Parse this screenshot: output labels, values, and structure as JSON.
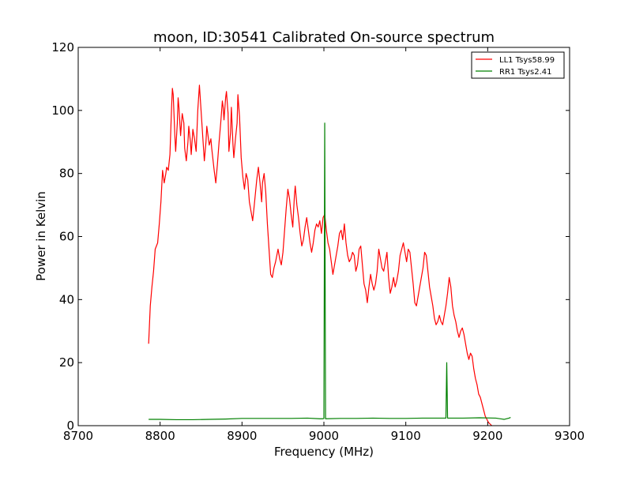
{
  "chart_data": {
    "type": "line",
    "title": "moon, ID:30541 Calibrated On-source spectrum",
    "xlabel": "Frequency (MHz)",
    "ylabel": "Power in Kelvin",
    "xlim": [
      8700,
      9300
    ],
    "ylim": [
      0,
      120
    ],
    "x_ticks": [
      8700,
      8800,
      8900,
      9000,
      9100,
      9200,
      9300
    ],
    "y_ticks": [
      0,
      20,
      40,
      60,
      80,
      100,
      120
    ],
    "grid": false,
    "legend_position": "top-right",
    "series": [
      {
        "name": "LL1 Tsys58.99",
        "color": "#ff0000",
        "points": [
          [
            8786,
            26
          ],
          [
            8788,
            38
          ],
          [
            8790,
            44
          ],
          [
            8792,
            49
          ],
          [
            8794,
            56
          ],
          [
            8797,
            58
          ],
          [
            8799,
            64
          ],
          [
            8801,
            71
          ],
          [
            8803,
            81
          ],
          [
            8805,
            77
          ],
          [
            8807,
            80
          ],
          [
            8808,
            82
          ],
          [
            8810,
            81
          ],
          [
            8812,
            86
          ],
          [
            8814,
            101
          ],
          [
            8815,
            107
          ],
          [
            8816,
            105
          ],
          [
            8818,
            92
          ],
          [
            8819,
            87
          ],
          [
            8821,
            96
          ],
          [
            8822,
            104
          ],
          [
            8823,
            101
          ],
          [
            8825,
            92
          ],
          [
            8827,
            99
          ],
          [
            8829,
            96
          ],
          [
            8830,
            88
          ],
          [
            8832,
            84
          ],
          [
            8834,
            90
          ],
          [
            8835,
            95
          ],
          [
            8837,
            90
          ],
          [
            8838,
            86
          ],
          [
            8840,
            94
          ],
          [
            8842,
            91
          ],
          [
            8844,
            87
          ],
          [
            8846,
            100
          ],
          [
            8848,
            108
          ],
          [
            8850,
            100
          ],
          [
            8852,
            92
          ],
          [
            8854,
            84
          ],
          [
            8856,
            90
          ],
          [
            8857,
            95
          ],
          [
            8859,
            91
          ],
          [
            8860,
            89
          ],
          [
            8862,
            91
          ],
          [
            8863,
            88
          ],
          [
            8866,
            81
          ],
          [
            8868,
            77
          ],
          [
            8870,
            83
          ],
          [
            8872,
            90
          ],
          [
            8874,
            96
          ],
          [
            8876,
            103
          ],
          [
            8877,
            101
          ],
          [
            8878,
            97
          ],
          [
            8880,
            104
          ],
          [
            8881,
            106
          ],
          [
            8883,
            99
          ],
          [
            8884,
            87
          ],
          [
            8886,
            93
          ],
          [
            8887,
            101
          ],
          [
            8889,
            89
          ],
          [
            8890,
            85
          ],
          [
            8892,
            91
          ],
          [
            8894,
            96
          ],
          [
            8895,
            105
          ],
          [
            8897,
            98
          ],
          [
            8899,
            85
          ],
          [
            8901,
            79
          ],
          [
            8903,
            75
          ],
          [
            8905,
            80
          ],
          [
            8907,
            78
          ],
          [
            8909,
            71
          ],
          [
            8911,
            68
          ],
          [
            8913,
            65
          ],
          [
            8915,
            70
          ],
          [
            8918,
            78
          ],
          [
            8920,
            82
          ],
          [
            8922,
            77
          ],
          [
            8924,
            71
          ],
          [
            8925,
            77
          ],
          [
            8927,
            80
          ],
          [
            8929,
            74
          ],
          [
            8931,
            64
          ],
          [
            8933,
            56
          ],
          [
            8935,
            48
          ],
          [
            8937,
            47
          ],
          [
            8939,
            50
          ],
          [
            8941,
            52
          ],
          [
            8944,
            56
          ],
          [
            8946,
            53
          ],
          [
            8948,
            51
          ],
          [
            8950,
            55
          ],
          [
            8952,
            62
          ],
          [
            8954,
            69
          ],
          [
            8956,
            75
          ],
          [
            8958,
            72
          ],
          [
            8960,
            67
          ],
          [
            8962,
            63
          ],
          [
            8964,
            73
          ],
          [
            8965,
            76
          ],
          [
            8967,
            70
          ],
          [
            8969,
            66
          ],
          [
            8971,
            61
          ],
          [
            8973,
            57
          ],
          [
            8975,
            59
          ],
          [
            8977,
            63
          ],
          [
            8979,
            66
          ],
          [
            8981,
            62
          ],
          [
            8983,
            58
          ],
          [
            8985,
            55
          ],
          [
            8987,
            58
          ],
          [
            8989,
            62
          ],
          [
            8991,
            64
          ],
          [
            8993,
            63
          ],
          [
            8995,
            65
          ],
          [
            8997,
            61
          ],
          [
            8999,
            66
          ],
          [
            9001,
            67
          ],
          [
            9003,
            62
          ],
          [
            9005,
            58
          ],
          [
            9007,
            56
          ],
          [
            9009,
            52
          ],
          [
            9011,
            48
          ],
          [
            9013,
            51
          ],
          [
            9015,
            54
          ],
          [
            9017,
            57
          ],
          [
            9019,
            61
          ],
          [
            9021,
            62
          ],
          [
            9023,
            59
          ],
          [
            9025,
            64
          ],
          [
            9027,
            58
          ],
          [
            9029,
            54
          ],
          [
            9031,
            52
          ],
          [
            9033,
            53
          ],
          [
            9035,
            55
          ],
          [
            9037,
            54
          ],
          [
            9039,
            49
          ],
          [
            9041,
            51
          ],
          [
            9043,
            56
          ],
          [
            9045,
            57
          ],
          [
            9047,
            51
          ],
          [
            9049,
            45
          ],
          [
            9051,
            43
          ],
          [
            9053,
            39
          ],
          [
            9055,
            44
          ],
          [
            9057,
            48
          ],
          [
            9059,
            45
          ],
          [
            9061,
            43
          ],
          [
            9063,
            45
          ],
          [
            9065,
            49
          ],
          [
            9067,
            56
          ],
          [
            9069,
            53
          ],
          [
            9071,
            50
          ],
          [
            9073,
            49
          ],
          [
            9075,
            52
          ],
          [
            9077,
            55
          ],
          [
            9079,
            47
          ],
          [
            9081,
            42
          ],
          [
            9083,
            44
          ],
          [
            9085,
            47
          ],
          [
            9087,
            44
          ],
          [
            9089,
            46
          ],
          [
            9091,
            49
          ],
          [
            9093,
            54
          ],
          [
            9095,
            56
          ],
          [
            9097,
            58
          ],
          [
            9099,
            55
          ],
          [
            9101,
            52
          ],
          [
            9103,
            56
          ],
          [
            9105,
            55
          ],
          [
            9107,
            50
          ],
          [
            9109,
            45
          ],
          [
            9111,
            39
          ],
          [
            9113,
            38
          ],
          [
            9115,
            41
          ],
          [
            9117,
            44
          ],
          [
            9119,
            47
          ],
          [
            9121,
            50
          ],
          [
            9123,
            55
          ],
          [
            9125,
            54
          ],
          [
            9127,
            49
          ],
          [
            9129,
            44
          ],
          [
            9131,
            41
          ],
          [
            9133,
            38
          ],
          [
            9135,
            34
          ],
          [
            9137,
            32
          ],
          [
            9139,
            33
          ],
          [
            9141,
            35
          ],
          [
            9143,
            33
          ],
          [
            9145,
            32
          ],
          [
            9147,
            35
          ],
          [
            9149,
            38
          ],
          [
            9151,
            42
          ],
          [
            9153,
            47
          ],
          [
            9155,
            44
          ],
          [
            9157,
            38
          ],
          [
            9159,
            35
          ],
          [
            9161,
            33
          ],
          [
            9163,
            30
          ],
          [
            9165,
            28
          ],
          [
            9167,
            30
          ],
          [
            9169,
            31
          ],
          [
            9171,
            29
          ],
          [
            9173,
            26
          ],
          [
            9175,
            23
          ],
          [
            9177,
            21
          ],
          [
            9179,
            23
          ],
          [
            9181,
            22
          ],
          [
            9183,
            18
          ],
          [
            9185,
            15
          ],
          [
            9187,
            13
          ],
          [
            9189,
            10
          ],
          [
            9191,
            9
          ],
          [
            9193,
            7
          ],
          [
            9195,
            5
          ],
          [
            9197,
            3
          ],
          [
            9199,
            2
          ],
          [
            9201,
            1
          ],
          [
            9203,
            0.5
          ],
          [
            9205,
            0
          ]
        ]
      },
      {
        "name": "RR1 Tsys2.41",
        "color": "#008000",
        "points": [
          [
            8786,
            2.0
          ],
          [
            8800,
            2.0
          ],
          [
            8820,
            1.9
          ],
          [
            8840,
            1.9
          ],
          [
            8860,
            2.0
          ],
          [
            8880,
            2.1
          ],
          [
            8900,
            2.3
          ],
          [
            8920,
            2.3
          ],
          [
            8940,
            2.3
          ],
          [
            8960,
            2.3
          ],
          [
            8980,
            2.4
          ],
          [
            8995,
            2.2
          ],
          [
            8999,
            2.2
          ],
          [
            9000,
            2.3
          ],
          [
            9001,
            96
          ],
          [
            9002,
            2.2
          ],
          [
            9020,
            2.3
          ],
          [
            9040,
            2.3
          ],
          [
            9060,
            2.4
          ],
          [
            9080,
            2.3
          ],
          [
            9100,
            2.3
          ],
          [
            9120,
            2.4
          ],
          [
            9140,
            2.4
          ],
          [
            9149,
            2.4
          ],
          [
            9150,
            20
          ],
          [
            9151,
            2.4
          ],
          [
            9170,
            2.4
          ],
          [
            9190,
            2.5
          ],
          [
            9210,
            2.4
          ],
          [
            9220,
            2.0
          ],
          [
            9226,
            2.4
          ],
          [
            9228,
            2.6
          ]
        ]
      }
    ]
  }
}
